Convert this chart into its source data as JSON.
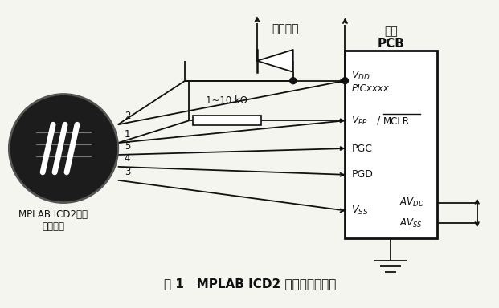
{
  "title": "图 1   MPLAB ICD2 与目标板的连接",
  "bg_color": "#f5f5f0",
  "text_color": "#111111",
  "label_icd2_line1": "MPLAB ICD2接口",
  "label_icd2_line2": "连接插座",
  "label_pcb_top": "应用",
  "label_pcb_bottom": "PCB",
  "label_user_reset": "用户复位",
  "label_resistor": "1~10 kΩ",
  "label_picxxxx": "PICxxxx",
  "label_pgc": "PGC",
  "label_pgd": "PGD",
  "label_mclr": "MCLR",
  "pin2": "2",
  "pin1": "1",
  "pin5": "5",
  "pin4": "4",
  "pin3": "3",
  "line_color": "#111111",
  "line_width": 1.3
}
